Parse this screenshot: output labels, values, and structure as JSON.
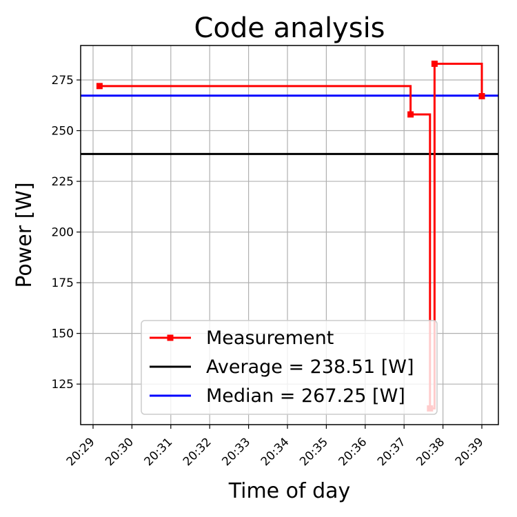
{
  "chart_data": {
    "type": "line",
    "title": "Code analysis",
    "xlabel": "Time of day",
    "ylabel": "Power [W]",
    "xticks": [
      "20:29",
      "20:30",
      "20:31",
      "20:32",
      "20:33",
      "20:34",
      "20:35",
      "20:36",
      "20:37",
      "20:38",
      "20:39"
    ],
    "yticks": [
      125,
      150,
      175,
      200,
      225,
      250,
      275
    ],
    "ylim": [
      105,
      292
    ],
    "grid": true,
    "legend_position": "lower-center",
    "series": [
      {
        "name": "Measurement",
        "kind": "step",
        "color": "#ff0000",
        "marker": "square",
        "points": [
          {
            "x": "20:29:10",
            "y": 272
          },
          {
            "x": "20:37:10",
            "y": 258
          },
          {
            "x": "20:37:40",
            "y": 113
          },
          {
            "x": "20:37:47",
            "y": 283
          },
          {
            "x": "20:39:00",
            "y": 267
          }
        ]
      },
      {
        "name": "Average = 238.51 [W]",
        "kind": "hline",
        "color": "#000000",
        "value": 238.51
      },
      {
        "name": "Median = 267.25 [W]",
        "kind": "hline",
        "color": "#0000ff",
        "value": 267.25
      }
    ]
  }
}
